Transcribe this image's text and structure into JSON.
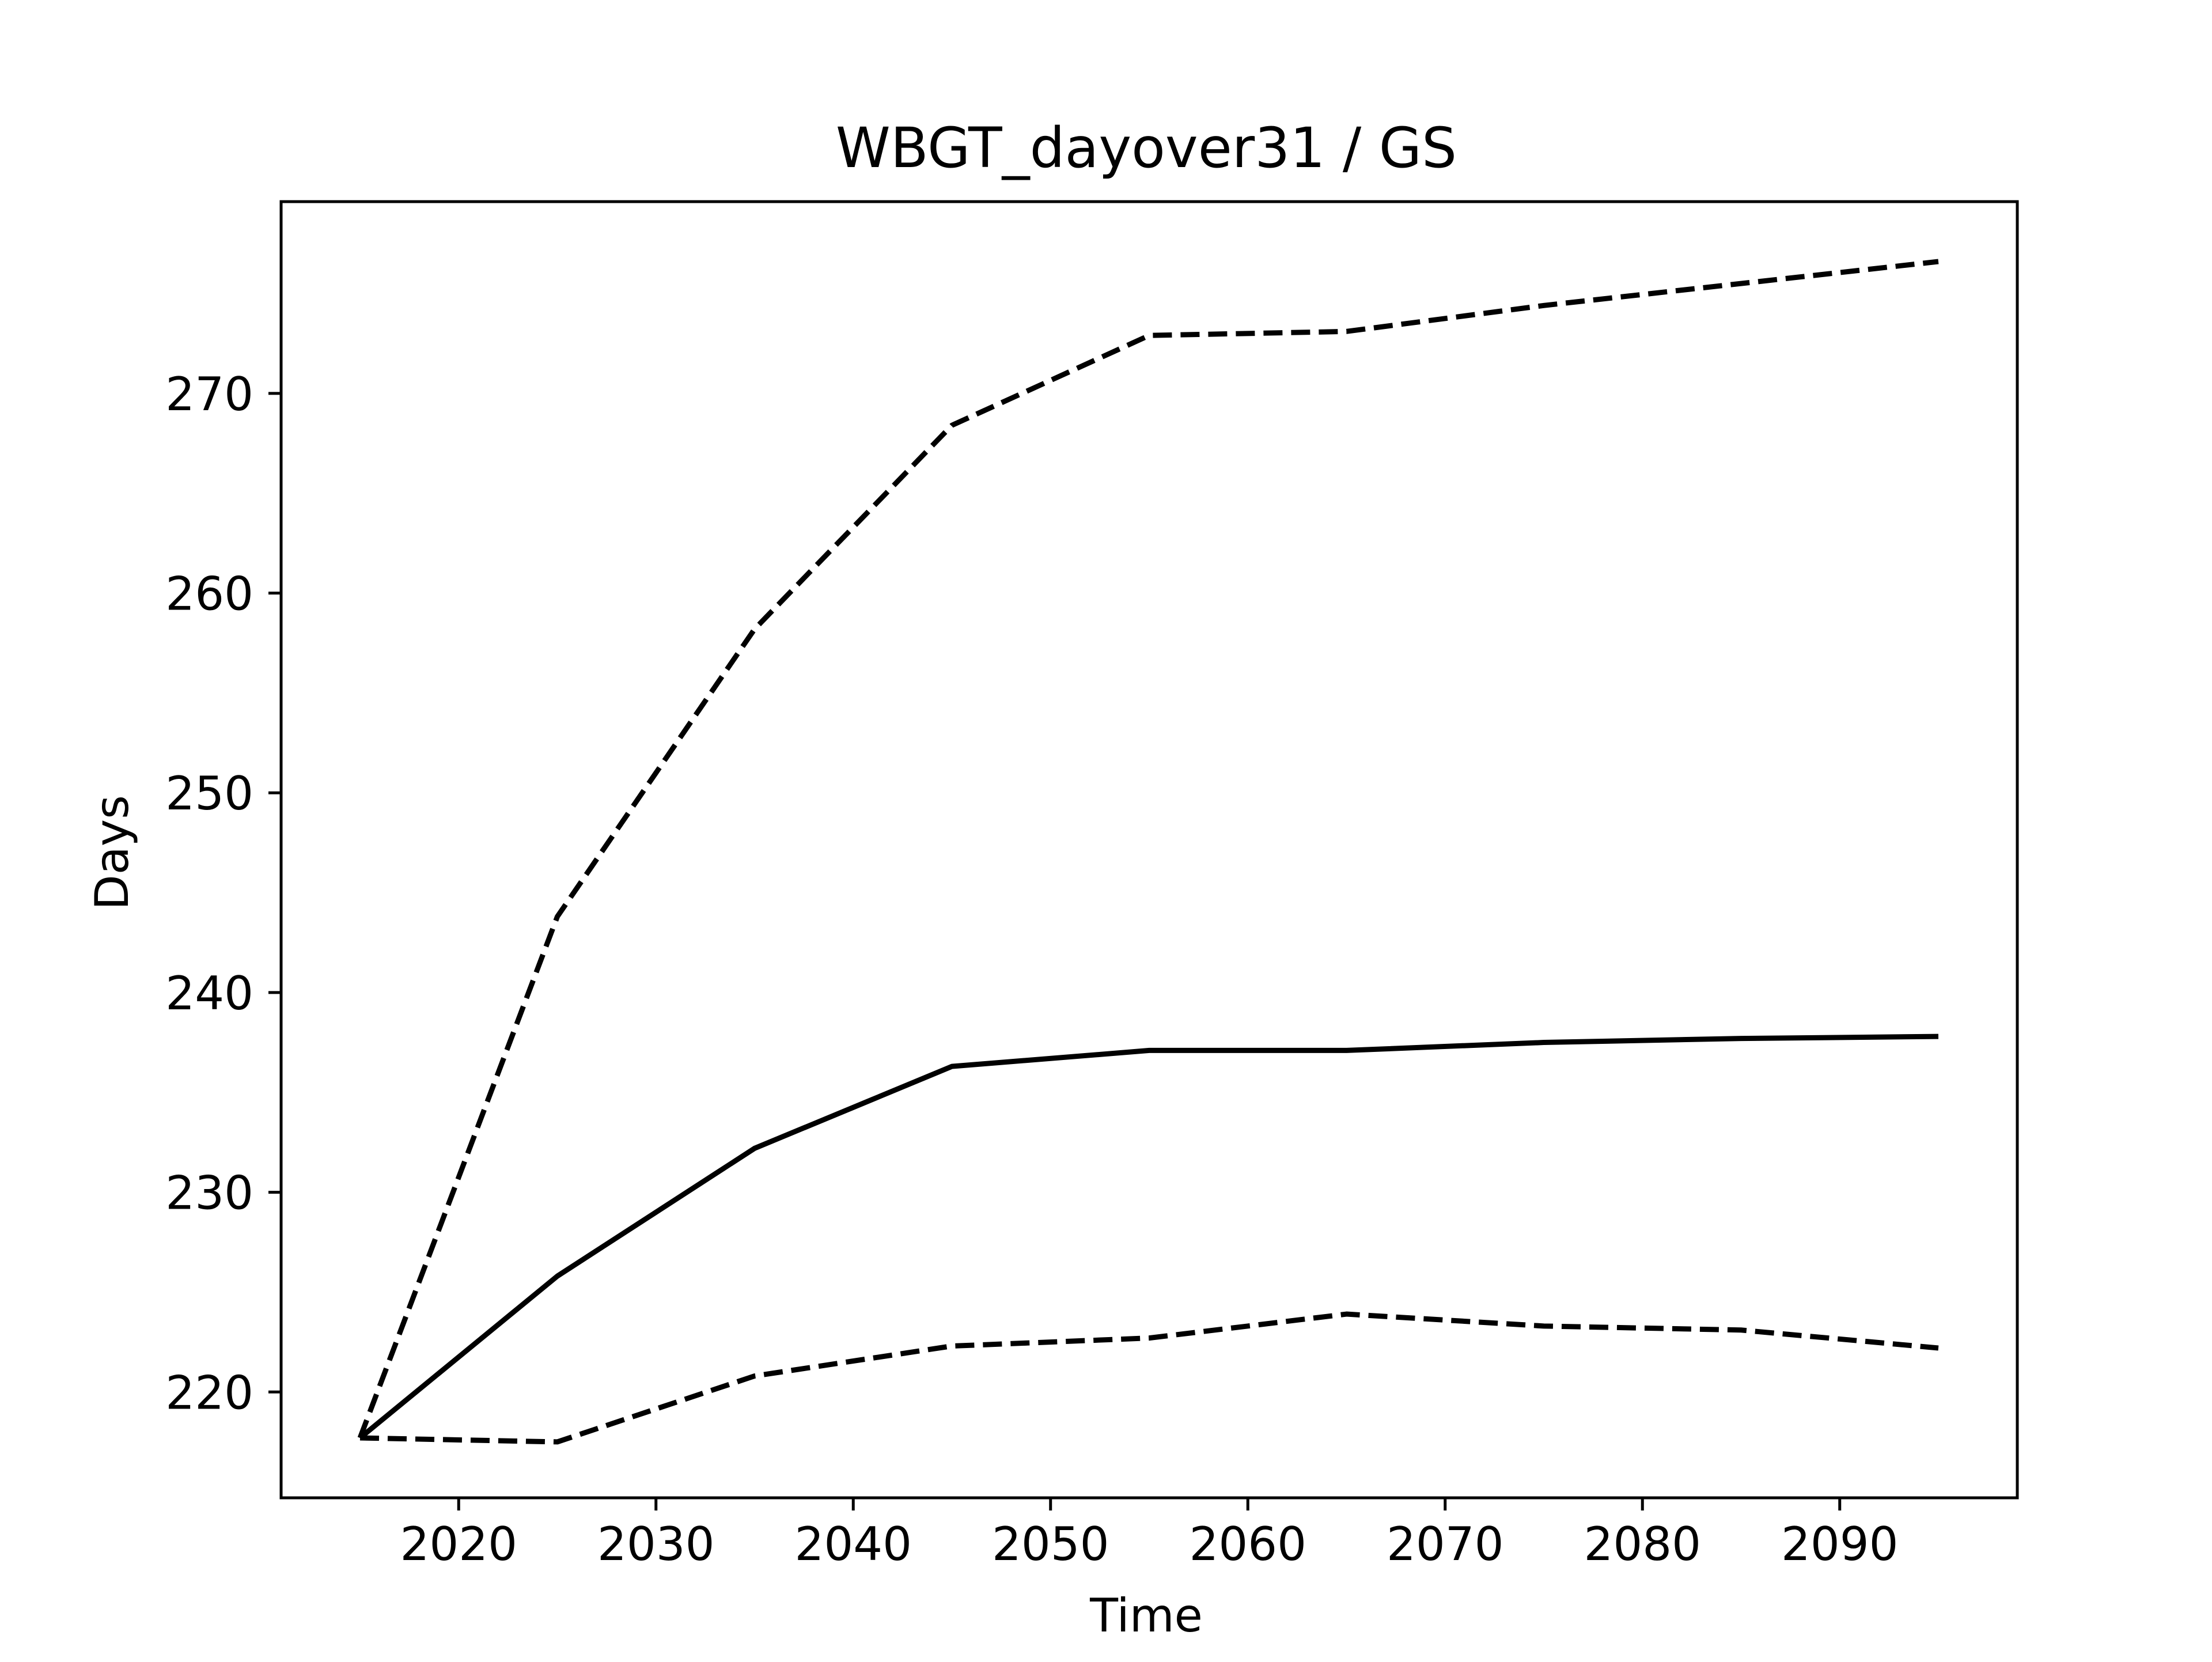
{
  "chart_data": {
    "type": "line",
    "title": "WBGT_dayover31 / GS",
    "xlabel": "Time",
    "ylabel": "Days",
    "x": [
      2015,
      2025,
      2035,
      2045,
      2055,
      2065,
      2075,
      2085,
      2095
    ],
    "xlim": [
      2011,
      2099
    ],
    "ylim": [
      214.7,
      279.6
    ],
    "xticks": [
      2020,
      2030,
      2040,
      2050,
      2060,
      2070,
      2080,
      2090
    ],
    "yticks": [
      220,
      230,
      240,
      250,
      260,
      270
    ],
    "grid": false,
    "legend": "none",
    "series": [
      {
        "style": "dashed",
        "color": "#000000",
        "values": [
          217.7,
          243.8,
          258.2,
          268.4,
          272.9,
          273.1,
          274.4,
          275.5,
          276.6
        ]
      },
      {
        "style": "solid",
        "color": "#000000",
        "values": [
          217.7,
          225.8,
          232.2,
          236.3,
          237.1,
          237.1,
          237.5,
          237.7,
          237.8
        ]
      },
      {
        "style": "dashed",
        "color": "#000000",
        "values": [
          217.7,
          217.5,
          220.8,
          222.3,
          222.7,
          223.9,
          223.3,
          223.1,
          222.2
        ]
      }
    ]
  }
}
